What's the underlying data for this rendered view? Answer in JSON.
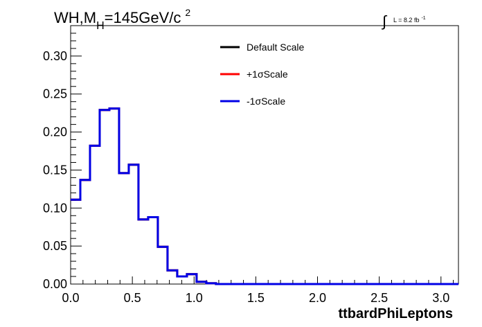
{
  "chart_data": {
    "type": "line",
    "title": {
      "main": "WH,M",
      "sub": "H",
      "rest": "=145GeV/c",
      "sup": "2"
    },
    "lumi": {
      "integral": "∫",
      "text": "L = 8.2 fb",
      "sup": "-1"
    },
    "xlabel": "ttbardPhiLeptons",
    "ylabel": "",
    "xlim": [
      0,
      3.14159
    ],
    "ylim": [
      0,
      0.34
    ],
    "xticks": [
      "0.0",
      "0.5",
      "1.0",
      "1.5",
      "2.0",
      "2.5",
      "3.0"
    ],
    "yticks": [
      "0.00",
      "0.05",
      "0.10",
      "0.15",
      "0.20",
      "0.25",
      "0.30"
    ],
    "bin_width": 0.0785,
    "bin_lows": [
      0.0,
      0.0785,
      0.157,
      0.2355,
      0.314,
      0.3925,
      0.471,
      0.5495,
      0.628,
      0.7065,
      0.785,
      0.8635,
      0.942,
      1.0205,
      1.099
    ],
    "series": [
      {
        "name": "Default Scale",
        "color": "#000000",
        "values": [
          0.111,
          0.137,
          0.182,
          0.229,
          0.231,
          0.146,
          0.157,
          0.085,
          0.088,
          0.049,
          0.018,
          0.01,
          0.013,
          0.003,
          0.001
        ]
      },
      {
        "name": "+1σScale",
        "color": "#ff0000",
        "values": [
          0.111,
          0.137,
          0.182,
          0.229,
          0.231,
          0.146,
          0.157,
          0.085,
          0.088,
          0.049,
          0.018,
          0.01,
          0.013,
          0.003,
          0.001
        ]
      },
      {
        "name": "-1σScale",
        "color": "#0000e6",
        "values": [
          0.111,
          0.137,
          0.182,
          0.229,
          0.231,
          0.146,
          0.157,
          0.085,
          0.088,
          0.049,
          0.018,
          0.01,
          0.013,
          0.003,
          0.001
        ]
      }
    ],
    "legend_position": "top-center",
    "grid": false
  }
}
